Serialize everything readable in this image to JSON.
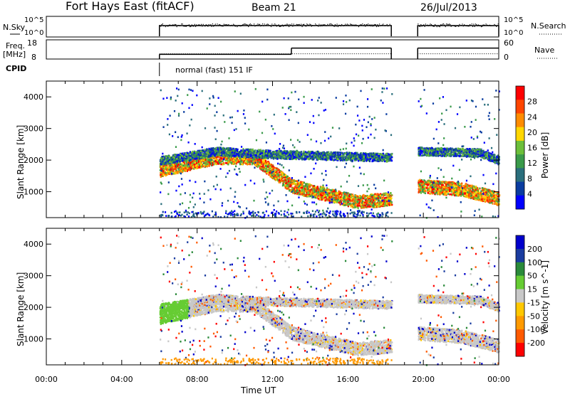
{
  "header": {
    "title": "Fort Hays East (fitACF)",
    "beam": "Beam 21",
    "date": "26/Jul/2013"
  },
  "noise_panel": {
    "left_label": "N.Sky",
    "left_ticks": [
      "10^5",
      "10^0"
    ],
    "right_ticks": [
      "10^5",
      "10^0"
    ],
    "right_label": "N.Search"
  },
  "freq_panel": {
    "left_label_line1": "Freq.",
    "left_label_line2": "[MHz]",
    "left_ticks": [
      "18",
      "8"
    ],
    "right_ticks": [
      "60",
      "0"
    ],
    "right_label": "Nave"
  },
  "cpid": {
    "label": "CPID",
    "value": "normal (fast) 151 IF"
  },
  "colors": {
    "power": [
      "#0000ff",
      "#0a3ca0",
      "#2a6e7c",
      "#3a9a4a",
      "#6cbf3a",
      "#ffd700",
      "#ff8c00",
      "#ff4500",
      "#ff0000"
    ],
    "velocity": [
      "#ff0000",
      "#ff5a00",
      "#ff9a00",
      "#ffc800",
      "#c8c8c8",
      "#66cc33",
      "#2a8a3a",
      "#1a3ca0",
      "#0000cc"
    ]
  },
  "chart_data": [
    {
      "type": "heatmap",
      "title": "",
      "xlabel": "Time UT",
      "ylabel": "Slant Range [km]",
      "xlim": [
        0,
        24
      ],
      "ylim": [
        180,
        4500
      ],
      "x_ticks": [
        "00:00",
        "04:00",
        "08:00",
        "12:00",
        "16:00",
        "20:00",
        "00:00"
      ],
      "y_ticks": [
        "1000",
        "2000",
        "3000",
        "4000"
      ],
      "colorbar_label": "Power [dB]",
      "colorbar_ticks": [
        "4",
        "8",
        "12",
        "16",
        "20",
        "24",
        "28"
      ],
      "value_range": [
        0,
        30
      ],
      "data_gaps_hours": [
        [
          0,
          6.0
        ],
        [
          18.3,
          19.7
        ]
      ],
      "scatter_bands": [
        {
          "hours": [
            6.0,
            18.3
          ],
          "range_km": [
            [
              6.0,
              1700
            ],
            [
              9.0,
              2100
            ],
            [
              11.0,
              2100
            ],
            [
              13.0,
              1200
            ],
            [
              16.5,
              700
            ],
            [
              18.3,
              800
            ]
          ],
          "peak_dB": 28
        },
        {
          "hours": [
            6.0,
            18.3
          ],
          "range_km": [
            [
              6.0,
              2000
            ],
            [
              9.0,
              2300
            ],
            [
              12.0,
              2200
            ],
            [
              18.3,
              2100
            ]
          ],
          "peak_dB": 12
        },
        {
          "hours": [
            19.7,
            24.0
          ],
          "range_km": [
            [
              19.7,
              2300
            ],
            [
              23.0,
              2250
            ],
            [
              24.0,
              2000
            ]
          ],
          "peak_dB": 14
        },
        {
          "hours": [
            19.7,
            24.0
          ],
          "range_km": [
            [
              19.7,
              1200
            ],
            [
              22.0,
              1100
            ],
            [
              24.0,
              800
            ]
          ],
          "peak_dB": 26
        }
      ]
    },
    {
      "type": "heatmap",
      "title": "",
      "xlabel": "Time UT",
      "ylabel": "Slant Range [km]",
      "xlim": [
        0,
        24
      ],
      "ylim": [
        180,
        4500
      ],
      "x_ticks": [
        "00:00",
        "04:00",
        "08:00",
        "12:00",
        "16:00",
        "20:00",
        "00:00"
      ],
      "y_ticks": [
        "1000",
        "2000",
        "3000",
        "4000"
      ],
      "colorbar_label": "Velocity [m s^-1]",
      "colorbar_ticks": [
        "200",
        "100",
        "50",
        "15",
        "-15",
        "-50",
        "-100",
        "-200"
      ],
      "value_range": [
        -250,
        250
      ],
      "data_gaps_hours": [
        [
          0,
          6.0
        ],
        [
          18.3,
          19.7
        ]
      ]
    }
  ],
  "time_series": {
    "hours": [
      6.0,
      18.3,
      19.7,
      24.0
    ],
    "freq_mhz_segments": [
      [
        6.0,
        13.0,
        11
      ],
      [
        13.0,
        18.3,
        15
      ],
      [
        19.7,
        24.0,
        15
      ]
    ],
    "nave": 20
  }
}
